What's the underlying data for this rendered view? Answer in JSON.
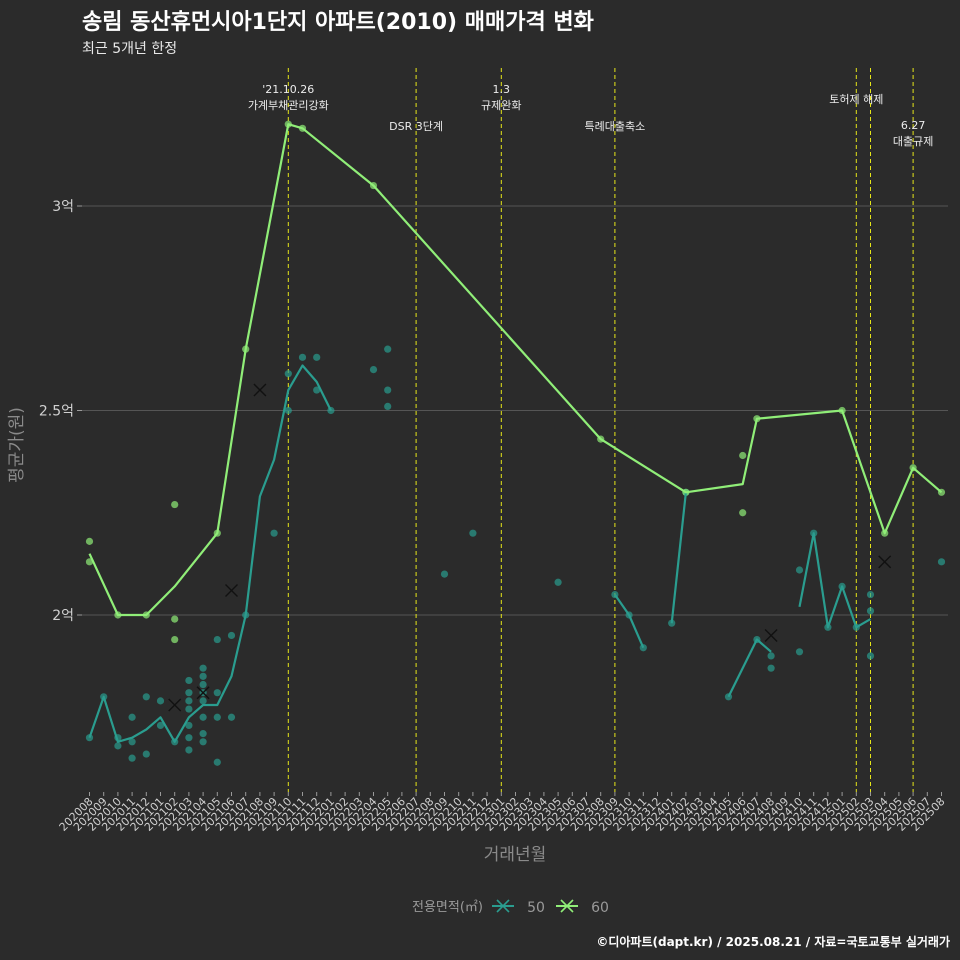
{
  "title": "송림 동산휴먼시아1단지 아파트(2010) 매매가격 변화",
  "subtitle": "최근 5개년 한정",
  "caption": "©디아파트(dapt.kr) / 2025.08.21 / 자료=국토교통부 실거래가",
  "colors": {
    "background": "#2b2b2b",
    "grid": "#555555",
    "event_line": "#e6e619",
    "series_50": "#2a9d8f",
    "series_60": "#90ee78"
  },
  "chart_data": {
    "type": "line",
    "xlabel": "거래년월",
    "ylabel": "평균가(원)",
    "legend_title": "전용면적(㎡)",
    "legend_position": "bottom",
    "grid": true,
    "ylim": [
      1.6,
      3.35
    ],
    "yticks": [
      {
        "value": 2.0,
        "label": "2억"
      },
      {
        "value": 2.5,
        "label": "2.5억"
      },
      {
        "value": 3.0,
        "label": "3억"
      }
    ],
    "categories": [
      "202008",
      "202009",
      "202010",
      "202011",
      "202012",
      "202101",
      "202102",
      "202103",
      "202104",
      "202105",
      "202106",
      "202107",
      "202108",
      "202109",
      "202110",
      "202111",
      "202112",
      "202201",
      "202202",
      "202203",
      "202204",
      "202205",
      "202206",
      "202207",
      "202208",
      "202209",
      "202210",
      "202211",
      "202212",
      "202301",
      "202302",
      "202303",
      "202304",
      "202305",
      "202306",
      "202307",
      "202308",
      "202309",
      "202310",
      "202311",
      "202312",
      "202401",
      "202402",
      "202403",
      "202404",
      "202405",
      "202406",
      "202407",
      "202408",
      "202409",
      "202410",
      "202411",
      "202412",
      "202501",
      "202502",
      "202503",
      "202504",
      "202505",
      "202506",
      "202507",
      "202508"
    ],
    "events": [
      {
        "x": "202110",
        "label_lines": [
          "'21.10.26",
          "가계부채관리강화"
        ],
        "label_row": 0
      },
      {
        "x": "202207",
        "label_lines": [
          "DSR 3단계"
        ],
        "label_row": 1
      },
      {
        "x": "202301",
        "label_lines": [
          "1.3",
          "규제완화"
        ],
        "label_row": 0
      },
      {
        "x": "202309",
        "label_lines": [
          "특례대출축소"
        ],
        "label_row": 1
      },
      {
        "x": "202502",
        "label_lines": [
          "토허제 해제"
        ],
        "label_row": 0
      },
      {
        "x": "202503",
        "label_lines": [],
        "label_row": 0
      },
      {
        "x": "202506",
        "label_lines": [
          "6.27",
          "대출규제"
        ],
        "label_row": 1
      }
    ],
    "series": [
      {
        "name": "50",
        "color": "#2a9d8f",
        "line_segments": [
          [
            [
              "202008",
              1.7
            ],
            [
              "202009",
              1.8
            ],
            [
              "202010",
              1.69
            ],
            [
              "202011",
              1.7
            ],
            [
              "202012",
              1.72
            ],
            [
              "202101",
              1.75
            ],
            [
              "202102",
              1.69
            ],
            [
              "202103",
              1.75
            ],
            [
              "202104",
              1.78
            ],
            [
              "202105",
              1.78
            ],
            [
              "202106",
              1.85
            ],
            [
              "202107",
              2.0
            ],
            [
              "202108",
              2.29
            ],
            [
              "202109",
              2.38
            ],
            [
              "202110",
              2.55
            ],
            [
              "202111",
              2.61
            ],
            [
              "202112",
              2.57
            ],
            [
              "202201",
              2.5
            ]
          ],
          [
            [
              "202309",
              2.05
            ],
            [
              "202310",
              2.0
            ],
            [
              "202311",
              1.92
            ]
          ],
          [
            [
              "202401",
              1.98
            ],
            [
              "202402",
              2.3
            ]
          ],
          [
            [
              "202405",
              1.8
            ],
            [
              "202407",
              1.94
            ],
            [
              "202408",
              1.91
            ]
          ],
          [
            [
              "202410",
              2.02
            ],
            [
              "202411",
              2.2
            ],
            [
              "202412",
              1.97
            ],
            [
              "202501",
              2.07
            ],
            [
              "202502",
              1.97
            ],
            [
              "202503",
              1.99
            ]
          ]
        ],
        "points": [
          [
            "202008",
            1.7
          ],
          [
            "202009",
            1.8
          ],
          [
            "202010",
            1.68
          ],
          [
            "202010",
            1.7
          ],
          [
            "202011",
            1.65
          ],
          [
            "202011",
            1.69
          ],
          [
            "202011",
            1.75
          ],
          [
            "202012",
            1.66
          ],
          [
            "202012",
            1.8
          ],
          [
            "202101",
            1.73
          ],
          [
            "202101",
            1.79
          ],
          [
            "202102",
            1.69
          ],
          [
            "202103",
            1.67
          ],
          [
            "202103",
            1.7
          ],
          [
            "202103",
            1.73
          ],
          [
            "202103",
            1.77
          ],
          [
            "202103",
            1.79
          ],
          [
            "202103",
            1.81
          ],
          [
            "202103",
            1.84
          ],
          [
            "202104",
            1.69
          ],
          [
            "202104",
            1.71
          ],
          [
            "202104",
            1.75
          ],
          [
            "202104",
            1.79
          ],
          [
            "202104",
            1.81
          ],
          [
            "202104",
            1.83
          ],
          [
            "202104",
            1.85
          ],
          [
            "202104",
            1.87
          ],
          [
            "202105",
            1.64
          ],
          [
            "202105",
            1.75
          ],
          [
            "202105",
            1.81
          ],
          [
            "202105",
            1.94
          ],
          [
            "202106",
            1.75
          ],
          [
            "202106",
            1.95
          ],
          [
            "202107",
            2.0
          ],
          [
            "202109",
            2.2
          ],
          [
            "202110",
            2.5
          ],
          [
            "202110",
            2.59
          ],
          [
            "202111",
            2.63
          ],
          [
            "202112",
            2.55
          ],
          [
            "202112",
            2.63
          ],
          [
            "202201",
            2.5
          ],
          [
            "202204",
            2.6
          ],
          [
            "202205",
            2.51
          ],
          [
            "202205",
            2.55
          ],
          [
            "202205",
            2.65
          ],
          [
            "202209",
            2.1
          ],
          [
            "202211",
            2.2
          ],
          [
            "202305",
            2.08
          ],
          [
            "202309",
            2.05
          ],
          [
            "202310",
            2.0
          ],
          [
            "202311",
            1.92
          ],
          [
            "202401",
            1.98
          ],
          [
            "202402",
            2.3
          ],
          [
            "202405",
            1.8
          ],
          [
            "202407",
            1.94
          ],
          [
            "202408",
            1.87
          ],
          [
            "202408",
            1.9
          ],
          [
            "202410",
            1.91
          ],
          [
            "202410",
            2.11
          ],
          [
            "202411",
            2.2
          ],
          [
            "202412",
            1.97
          ],
          [
            "202501",
            2.07
          ],
          [
            "202502",
            1.97
          ],
          [
            "202503",
            1.9
          ],
          [
            "202503",
            2.01
          ],
          [
            "202503",
            2.05
          ],
          [
            "202508",
            2.13
          ]
        ],
        "markers": [
          [
            "202102",
            1.78
          ],
          [
            "202104",
            1.81
          ],
          [
            "202106",
            2.06
          ],
          [
            "202108",
            2.55
          ],
          [
            "202408",
            1.95
          ],
          [
            "202504",
            2.13
          ]
        ]
      },
      {
        "name": "60",
        "color": "#90ee78",
        "line_segments": [
          [
            [
              "202008",
              2.15
            ],
            [
              "202010",
              2.0
            ],
            [
              "202012",
              2.0
            ],
            [
              "202102",
              2.07
            ],
            [
              "202105",
              2.2
            ],
            [
              "202107",
              2.65
            ],
            [
              "202110",
              3.2
            ],
            [
              "202111",
              3.19
            ],
            [
              "202204",
              3.05
            ],
            [
              "202308",
              2.43
            ],
            [
              "202402",
              2.3
            ],
            [
              "202406",
              2.32
            ],
            [
              "202407",
              2.48
            ],
            [
              "202501",
              2.5
            ],
            [
              "202504",
              2.2
            ],
            [
              "202506",
              2.36
            ],
            [
              "202508",
              2.3
            ]
          ]
        ],
        "points": [
          [
            "202008",
            2.13
          ],
          [
            "202008",
            2.18
          ],
          [
            "202010",
            2.0
          ],
          [
            "202012",
            2.0
          ],
          [
            "202102",
            1.94
          ],
          [
            "202102",
            1.99
          ],
          [
            "202102",
            2.27
          ],
          [
            "202105",
            2.2
          ],
          [
            "202107",
            2.65
          ],
          [
            "202110",
            3.2
          ],
          [
            "202111",
            3.19
          ],
          [
            "202204",
            3.05
          ],
          [
            "202308",
            2.43
          ],
          [
            "202402",
            2.3
          ],
          [
            "202406",
            2.25
          ],
          [
            "202406",
            2.39
          ],
          [
            "202407",
            2.48
          ],
          [
            "202501",
            2.5
          ],
          [
            "202504",
            2.2
          ],
          [
            "202506",
            2.36
          ],
          [
            "202508",
            2.3
          ]
        ],
        "markers": []
      }
    ]
  }
}
